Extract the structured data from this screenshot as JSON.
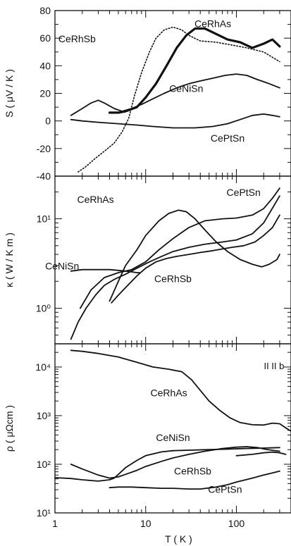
{
  "chart_data": [
    {
      "type": "line",
      "panel": "S",
      "ylabel": "S ( μV / K )",
      "xscale": "log",
      "yscale": "linear",
      "xlim": [
        1,
        400
      ],
      "ylim": [
        -40,
        80
      ],
      "yticks": [
        -40,
        -20,
        0,
        20,
        40,
        60,
        80
      ],
      "yticklabels": [
        "-40",
        "-20",
        "0",
        "20",
        "40",
        "60",
        "80"
      ],
      "series": [
        {
          "name": "CeRhSb",
          "style": "dotted",
          "label_at": [
            1.75,
            57
          ],
          "x": [
            1.8,
            2.2,
            2.8,
            3.5,
            4.5,
            5.5,
            6.5,
            7.5,
            9,
            11,
            13,
            16,
            20,
            25,
            30,
            40,
            60,
            90,
            130,
            200,
            300
          ],
          "y": [
            -37,
            -33,
            -27,
            -22,
            -16,
            -8,
            2,
            18,
            35,
            50,
            60,
            66,
            68,
            66,
            62,
            58,
            57,
            55,
            53,
            50,
            43
          ]
        },
        {
          "name": "CeRhAs",
          "style": "thick",
          "label_at": [
            55,
            68
          ],
          "x": [
            4,
            5,
            6,
            8,
            10,
            13,
            17,
            22,
            28,
            35,
            45,
            60,
            80,
            110,
            150,
            200,
            250,
            300
          ],
          "y": [
            6,
            6,
            7,
            10,
            17,
            27,
            40,
            53,
            62,
            67,
            67,
            63,
            59,
            57,
            53,
            56,
            59,
            54
          ]
        },
        {
          "name": "CeNiSn",
          "style": "solid",
          "label_at": [
            28,
            21
          ],
          "x": [
            1.5,
            2,
            2.5,
            3,
            3.5,
            4.5,
            5.5,
            7,
            9,
            12,
            16,
            22,
            30,
            40,
            55,
            75,
            100,
            130,
            170,
            230,
            300
          ],
          "y": [
            4,
            9,
            13,
            15,
            13,
            9,
            7,
            9,
            12,
            16,
            20,
            24,
            27,
            29,
            31,
            33,
            34,
            33,
            30,
            27,
            24
          ]
        },
        {
          "name": "CePtSn",
          "style": "solid",
          "label_at": [
            80,
            -15
          ],
          "x": [
            1.5,
            2,
            3,
            5,
            8,
            12,
            20,
            35,
            55,
            80,
            110,
            150,
            200,
            250,
            300
          ],
          "y": [
            1,
            0,
            -1,
            -2,
            -3,
            -4,
            -5,
            -5,
            -4,
            -2,
            1,
            4,
            5,
            4,
            3
          ]
        }
      ]
    },
    {
      "type": "line",
      "panel": "kappa",
      "ylabel": "κ ( W / K m )",
      "xscale": "log",
      "yscale": "log",
      "xlim": [
        1,
        400
      ],
      "ylim": [
        0.4,
        30
      ],
      "yticks": [
        1,
        10
      ],
      "yticklabels": [
        "10⁰",
        "10¹"
      ],
      "series": [
        {
          "name": "CeRhAs",
          "style": "solid",
          "label_at": [
            2.8,
            15
          ],
          "x": [
            4,
            5,
            6,
            8,
            10,
            14,
            18,
            23,
            28,
            35,
            45,
            60,
            80,
            110,
            150,
            190,
            230,
            280,
            300
          ],
          "y": [
            1.2,
            2,
            3,
            4.5,
            6.5,
            9.5,
            11.5,
            12.5,
            12,
            10,
            7.5,
            5.5,
            4.3,
            3.5,
            3.1,
            2.9,
            3.1,
            3.5,
            4
          ]
        },
        {
          "name": "CePtSn",
          "style": "solid",
          "label_at": [
            120,
            18
          ],
          "x": [
            1.9,
            2.5,
            3.5,
            5,
            7,
            10,
            14,
            20,
            30,
            45,
            70,
            100,
            150,
            200,
            250,
            300
          ],
          "y": [
            1,
            1.6,
            2.2,
            2.5,
            2.7,
            3.3,
            4.5,
            6,
            8,
            9.5,
            10,
            10.2,
            11,
            13,
            17,
            22
          ]
        },
        {
          "name": "CeNiSn",
          "style": "solid",
          "label_at": [
            1.2,
            2.7
          ],
          "x": [
            1.5,
            1.8,
            2.2,
            2.8,
            3.5,
            4.5,
            6,
            8,
            11,
            15,
            20,
            30,
            45,
            70,
            100,
            150,
            200,
            300
          ],
          "y": [
            0.45,
            0.7,
            1,
            1.4,
            1.8,
            2.1,
            2.4,
            2.8,
            3.3,
            3.8,
            4.3,
            4.8,
            5.2,
            5.5,
            5.8,
            6.8,
            9,
            18
          ]
        },
        {
          "name": "CeRhSb",
          "style": "solid",
          "label_at": [
            20,
            1.95
          ],
          "x": [
            4.2,
            5,
            6,
            8,
            10,
            13,
            17,
            22,
            30,
            40,
            55,
            70,
            90,
            120,
            160,
            200,
            250,
            300
          ],
          "y": [
            1.15,
            1.4,
            1.7,
            2.3,
            2.8,
            3.3,
            3.6,
            3.8,
            4,
            4.2,
            4.4,
            4.6,
            4.8,
            5,
            5.5,
            6.5,
            8,
            11
          ]
        },
        {
          "name": "",
          "style": "solid",
          "x": [
            1.5,
            2,
            3,
            4,
            5,
            6,
            7,
            8,
            8.5
          ],
          "y": [
            2.6,
            2.7,
            2.7,
            2.7,
            2.65,
            2.6,
            2.55,
            2.5,
            2.5
          ]
        }
      ]
    },
    {
      "type": "line",
      "panel": "rho",
      "ylabel": "ρ ( μΩcm )",
      "xlabel": "T ( K )",
      "xscale": "log",
      "yscale": "log",
      "xlim": [
        1,
        400
      ],
      "ylim": [
        10,
        30000
      ],
      "xticks": [
        1,
        10,
        100
      ],
      "xticklabels": [
        "1",
        "10",
        "100"
      ],
      "yticks": [
        10,
        100,
        1000,
        10000
      ],
      "yticklabels": [
        "10¹",
        "10²",
        "10³",
        "10⁴"
      ],
      "annotation": "II II b",
      "series": [
        {
          "name": "CeRhAs",
          "style": "solid",
          "label_at": [
            18,
            2500
          ],
          "x": [
            1.5,
            2,
            3,
            5,
            8,
            12,
            18,
            25,
            32,
            40,
            50,
            65,
            85,
            110,
            150,
            200,
            250,
            300,
            350,
            400
          ],
          "y": [
            22000,
            21000,
            19000,
            16000,
            12500,
            10000,
            9000,
            8000,
            5500,
            3300,
            2000,
            1300,
            900,
            720,
            650,
            640,
            700,
            680,
            560,
            480
          ]
        },
        {
          "name": "CeNiSn",
          "style": "solid",
          "label_at": [
            20,
            300
          ],
          "x": [
            1,
            1.5,
            2,
            3,
            4,
            4.5,
            5,
            6,
            8,
            10,
            15,
            20,
            30,
            50,
            80,
            120,
            200,
            300
          ],
          "y": [
            53,
            51,
            48,
            45,
            48,
            52,
            62,
            85,
            120,
            150,
            180,
            190,
            195,
            200,
            205,
            210,
            215,
            220
          ]
        },
        {
          "name": "CeRhSb",
          "style": "solid",
          "label_at": [
            33,
            62
          ],
          "x": [
            1.5,
            2,
            3,
            4,
            5,
            6,
            8,
            10,
            15,
            20,
            30,
            45,
            70,
            100,
            130,
            170,
            220,
            300
          ],
          "y": [
            100,
            80,
            60,
            52,
            55,
            62,
            75,
            90,
            115,
            135,
            160,
            185,
            210,
            225,
            230,
            220,
            200,
            185
          ]
        },
        {
          "name": "CePtSn",
          "style": "solid",
          "label_at": [
            75,
            26
          ],
          "x": [
            4,
            5,
            7,
            10,
            15,
            20,
            30,
            40,
            60,
            80,
            100,
            150,
            200,
            300
          ],
          "y": [
            33,
            34,
            34,
            33,
            32,
            32,
            31,
            31,
            34,
            38,
            43,
            52,
            60,
            72
          ]
        },
        {
          "name": "",
          "style": "solid",
          "x": [
            100,
            150,
            200,
            250,
            300,
            350
          ],
          "y": [
            150,
            160,
            172,
            178,
            172,
            160
          ]
        }
      ]
    }
  ]
}
